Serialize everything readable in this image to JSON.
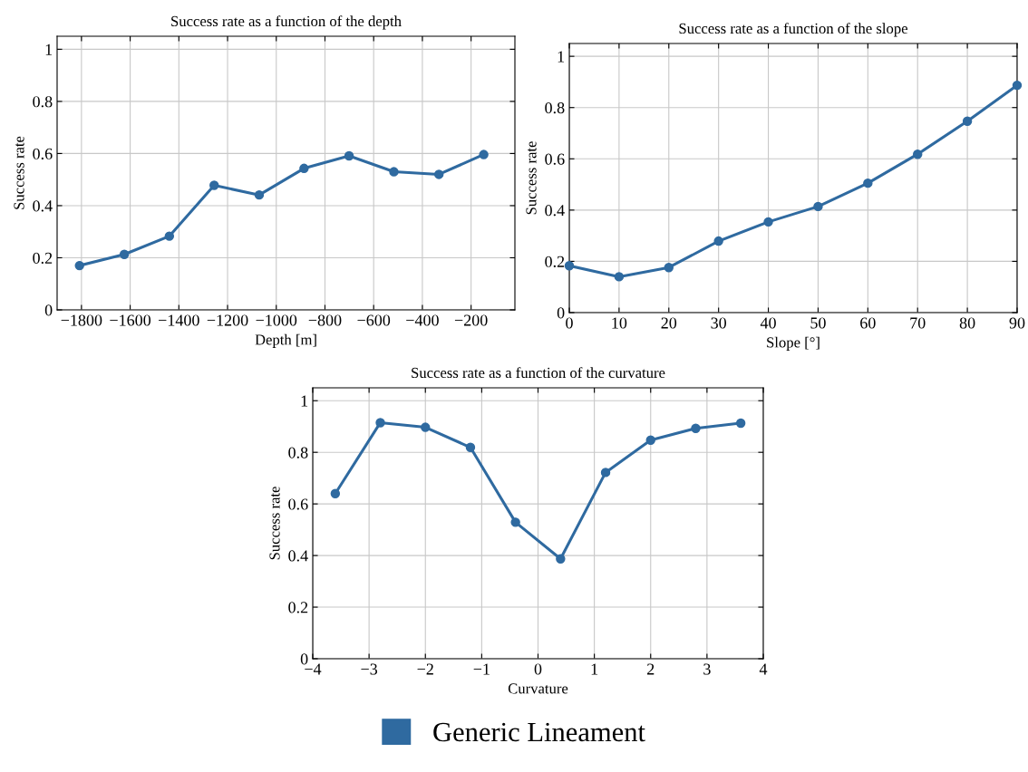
{
  "chart_data": [
    {
      "type": "line",
      "title": "Success rate as a function of the depth",
      "xlabel": "Depth [m]",
      "ylabel": "Success rate",
      "x": [
        -1808,
        -1624,
        -1439,
        -1255,
        -1070,
        -886,
        -701,
        -517,
        -332,
        -148
      ],
      "series": [
        {
          "color": "#2f6aa0",
          "values": [
            0.17,
            0.213,
            0.283,
            0.478,
            0.441,
            0.543,
            0.591,
            0.53,
            0.52,
            0.596
          ]
        }
      ],
      "xlim": [
        -1900,
        -20
      ],
      "ylim": [
        0,
        1.05
      ],
      "xticks": [
        -1800,
        -1600,
        -1400,
        -1200,
        -1000,
        -800,
        -600,
        -400,
        -200
      ],
      "yticks": [
        0,
        0.2,
        0.4,
        0.6,
        0.8,
        1
      ],
      "grid": true,
      "marker": "circle",
      "line_style": "solid"
    },
    {
      "type": "line",
      "title": "Success rate as a function of the slope",
      "xlabel": "Slope [°]",
      "ylabel": "Success rate",
      "x": [
        0,
        10,
        20,
        30,
        40,
        50,
        60,
        70,
        80,
        90
      ],
      "series": [
        {
          "color": "#2f6aa0",
          "values": [
            0.183,
            0.14,
            0.176,
            0.279,
            0.354,
            0.414,
            0.505,
            0.618,
            0.747,
            0.887
          ]
        }
      ],
      "xlim": [
        0,
        90
      ],
      "ylim": [
        0,
        1.05
      ],
      "xticks": [
        0,
        10,
        20,
        30,
        40,
        50,
        60,
        70,
        80,
        90
      ],
      "yticks": [
        0,
        0.2,
        0.4,
        0.6,
        0.8,
        1
      ],
      "grid": true,
      "marker": "circle",
      "line_style": "solid"
    },
    {
      "type": "line",
      "title": "Success rate as a function of the curvature",
      "xlabel": "Curvature",
      "ylabel": "Success rate",
      "x": [
        -3.6,
        -2.8,
        -2.0,
        -1.2,
        -0.4,
        0.4,
        1.2,
        2.0,
        2.8,
        3.6
      ],
      "series": [
        {
          "name": "Generic Lineament",
          "color": "#2f6aa0",
          "values": [
            0.64,
            0.915,
            0.897,
            0.819,
            0.529,
            0.387,
            0.722,
            0.847,
            0.893,
            0.913
          ]
        }
      ],
      "xlim": [
        -4,
        4
      ],
      "ylim": [
        0,
        1.05
      ],
      "xticks": [
        -4,
        -3,
        -2,
        -1,
        0,
        1,
        2,
        3,
        4
      ],
      "yticks": [
        0,
        0.2,
        0.4,
        0.6,
        0.8,
        1
      ],
      "grid": true,
      "marker": "circle",
      "line_style": "solid",
      "legend": "bottom"
    }
  ]
}
